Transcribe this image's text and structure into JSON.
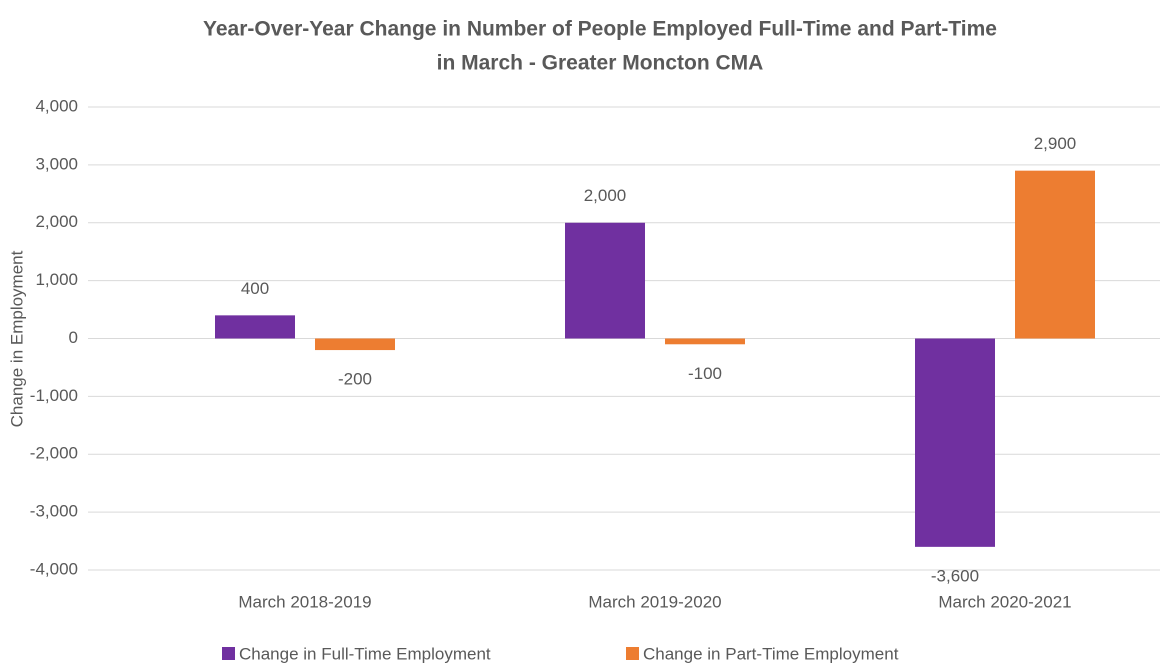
{
  "chart_data": {
    "type": "bar",
    "title": [
      "Year-Over-Year Change in Number of People Employed Full-Time and Part-Time",
      "in March - Greater Moncton CMA"
    ],
    "y_label": "Change in Employment",
    "categories": [
      "March 2018-2019",
      "March 2019-2020",
      "March 2020-2021"
    ],
    "series": [
      {
        "name": "Change in Full-Time Employment",
        "color": "#7030a0",
        "values": [
          400,
          2000,
          -3600
        ],
        "value_labels": [
          "400",
          "2,000",
          "-3,600"
        ]
      },
      {
        "name": "Change in Part-Time Employment",
        "color": "#ed7d31",
        "values": [
          -200,
          -100,
          2900
        ],
        "value_labels": [
          "-200",
          "-100",
          "2,900"
        ]
      }
    ],
    "ylim": [
      -4000,
      4000
    ],
    "yticks": [
      {
        "value": -4000,
        "label": "-4,000"
      },
      {
        "value": -3000,
        "label": "-3,000"
      },
      {
        "value": -2000,
        "label": "-2,000"
      },
      {
        "value": -1000,
        "label": "-1,000"
      },
      0,
      {
        "value": 1000,
        "label": "1,000"
      },
      {
        "value": 2000,
        "label": "2,000"
      },
      {
        "value": 3000,
        "label": "3,000"
      },
      {
        "value": 4000,
        "label": "4,000"
      }
    ],
    "grid": true,
    "legend": "bottom"
  }
}
